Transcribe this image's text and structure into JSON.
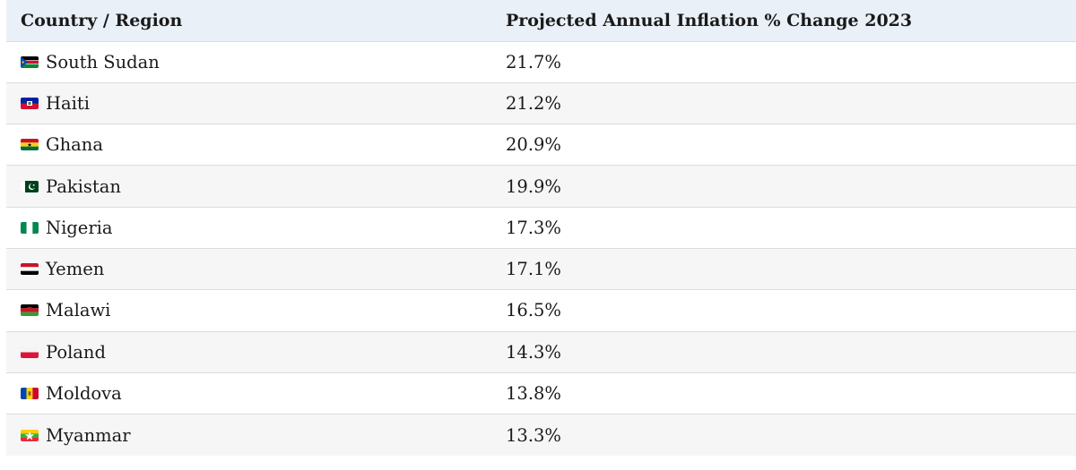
{
  "table": {
    "headers": {
      "country": "Country / Region",
      "inflation": "Projected Annual Inflation % Change 2023"
    },
    "rows": [
      {
        "country": "South Sudan",
        "value": "21.7%",
        "flag_icon": "south-sudan-flag-icon"
      },
      {
        "country": "Haiti",
        "value": "21.2%",
        "flag_icon": "haiti-flag-icon"
      },
      {
        "country": "Ghana",
        "value": "20.9%",
        "flag_icon": "ghana-flag-icon"
      },
      {
        "country": "Pakistan",
        "value": "19.9%",
        "flag_icon": "pakistan-flag-icon"
      },
      {
        "country": "Nigeria",
        "value": "17.3%",
        "flag_icon": "nigeria-flag-icon"
      },
      {
        "country": "Yemen",
        "value": "17.1%",
        "flag_icon": "yemen-flag-icon"
      },
      {
        "country": "Malawi",
        "value": "16.5%",
        "flag_icon": "malawi-flag-icon"
      },
      {
        "country": "Poland",
        "value": "14.3%",
        "flag_icon": "poland-flag-icon"
      },
      {
        "country": "Moldova",
        "value": "13.8%",
        "flag_icon": "moldova-flag-icon"
      },
      {
        "country": "Myanmar",
        "value": "13.3%",
        "flag_icon": "myanmar-flag-icon"
      }
    ]
  },
  "colors": {
    "header_bg": "#e9f0f8",
    "alt_row_bg": "#f6f6f6",
    "divider": "#dcdcdc"
  }
}
